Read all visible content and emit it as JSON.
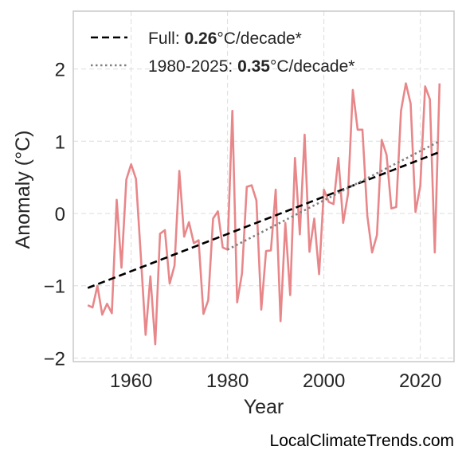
{
  "chart_data": {
    "type": "line",
    "xlabel": "Year",
    "ylabel": "Anomaly (°C)",
    "xlim": [
      1948,
      2027
    ],
    "ylim": [
      -2.05,
      2.8
    ],
    "xticks": [
      1960,
      1980,
      2000,
      2020
    ],
    "xtick_labels": [
      "1960",
      "1980",
      "2000",
      "2020"
    ],
    "yticks": [
      2,
      1,
      0,
      -1,
      -2
    ],
    "ytick_labels": [
      "2",
      "1",
      "0",
      "−1",
      "−2"
    ],
    "grid": true,
    "legend_position": "top-left",
    "series": [
      {
        "kind": "anomaly",
        "color": "#e8878a",
        "x": [
          1951,
          1952,
          1953,
          1954,
          1955,
          1956,
          1957,
          1958,
          1959,
          1960,
          1961,
          1962,
          1963,
          1964,
          1965,
          1966,
          1967,
          1968,
          1969,
          1970,
          1971,
          1972,
          1973,
          1974,
          1975,
          1976,
          1977,
          1978,
          1979,
          1980,
          1981,
          1982,
          1983,
          1984,
          1985,
          1986,
          1987,
          1988,
          1989,
          1990,
          1991,
          1992,
          1993,
          1994,
          1995,
          1996,
          1997,
          1998,
          1999,
          2000,
          2001,
          2002,
          2003,
          2004,
          2005,
          2006,
          2007,
          2008,
          2009,
          2010,
          2011,
          2012,
          2013,
          2014,
          2015,
          2016,
          2017,
          2018,
          2019,
          2020,
          2021,
          2022,
          2023,
          2024
        ],
        "y": [
          -1.27,
          -1.3,
          -1.0,
          -1.4,
          -1.25,
          -1.38,
          0.19,
          -0.75,
          0.47,
          0.68,
          0.48,
          -0.57,
          -1.68,
          -0.87,
          -1.81,
          -0.28,
          -0.23,
          -0.97,
          -0.72,
          0.59,
          -0.32,
          -0.12,
          -0.41,
          -0.37,
          -1.39,
          -1.2,
          -0.07,
          0.03,
          -0.47,
          -0.5,
          1.42,
          -1.23,
          -0.83,
          0.37,
          0.39,
          0.18,
          -1.33,
          -0.52,
          -0.51,
          0.33,
          -1.49,
          -0.13,
          -1.13,
          0.77,
          -0.29,
          1.09,
          -0.53,
          -0.07,
          -0.84,
          0.33,
          0.16,
          0.13,
          0.77,
          -0.13,
          0.27,
          1.71,
          1.16,
          1.16,
          -0.03,
          -0.54,
          -0.3,
          1.02,
          0.81,
          0.07,
          0.09,
          1.42,
          1.8,
          1.52,
          0.02,
          0.38,
          1.76,
          1.58,
          -0.54,
          1.8
        ]
      },
      {
        "kind": "trend",
        "style": "dashed",
        "color": "#000000",
        "x": [
          1951,
          2024
        ],
        "y": [
          -1.03,
          0.85
        ]
      },
      {
        "kind": "trend",
        "style": "dotted",
        "color": "#808080",
        "x": [
          1980,
          2024
        ],
        "y": [
          -0.5,
          1.0
        ]
      }
    ],
    "legend": [
      {
        "style": "dashed",
        "color": "#000000",
        "prefix": "Full: ",
        "value": "0.26",
        "suffix": "°C/decade*"
      },
      {
        "style": "dotted",
        "color": "#808080",
        "prefix": "1980-2025: ",
        "value": "0.35",
        "suffix": "°C/decade*"
      }
    ]
  },
  "credit": "LocalClimateTrends.com"
}
